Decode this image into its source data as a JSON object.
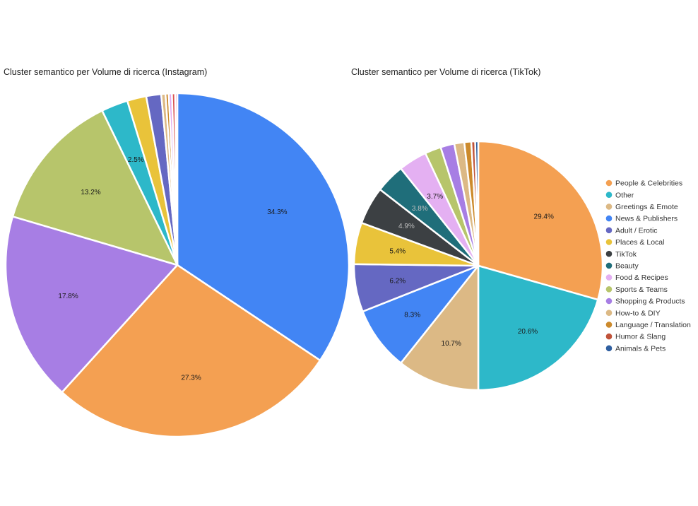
{
  "chart_data": [
    {
      "type": "pie",
      "title": "Cluster semantico per Volume di ricerca (Instagram)",
      "slices": [
        {
          "name": "News & Publishers",
          "value": 34.3,
          "label": "34.3%",
          "color": "#4285f4"
        },
        {
          "name": "People & Celebrities",
          "value": 27.3,
          "label": "27.3%",
          "color": "#f4a052"
        },
        {
          "name": "Shopping & Products",
          "value": 17.8,
          "label": "17.8%",
          "color": "#a77ee4"
        },
        {
          "name": "Sports & Teams",
          "value": 13.2,
          "label": "13.2%",
          "color": "#b7c56b"
        },
        {
          "name": "Other",
          "value": 2.5,
          "label": "2.5%",
          "color": "#2db8c9"
        },
        {
          "name": "Places & Local",
          "value": 1.8,
          "label": "",
          "color": "#e9c33a"
        },
        {
          "name": "Adult / Erotic",
          "value": 1.4,
          "label": "",
          "color": "#6568c2"
        },
        {
          "name": "How-to & DIY",
          "value": 0.4,
          "label": "",
          "color": "#dcb985"
        },
        {
          "name": "Language / Translation",
          "value": 0.3,
          "label": "",
          "color": "#cc8a2c"
        },
        {
          "name": "Food & Recipes",
          "value": 0.3,
          "label": "",
          "color": "#e4a8ee"
        },
        {
          "name": "Humor & Slang",
          "value": 0.3,
          "label": "",
          "color": "#d9534f"
        },
        {
          "name": "Beauty",
          "value": 0.2,
          "label": "",
          "color": "#ef80b6"
        }
      ]
    },
    {
      "type": "pie",
      "title": "Cluster semantico per Volume di ricerca (TikTok)",
      "legend": "right",
      "slices": [
        {
          "name": "People & Celebrities",
          "value": 29.4,
          "label": "29.4%",
          "color": "#f4a052"
        },
        {
          "name": "Other",
          "value": 20.6,
          "label": "20.6%",
          "color": "#2db8c9"
        },
        {
          "name": "Greetings & Emote",
          "value": 10.7,
          "label": "10.7%",
          "color": "#dcb985"
        },
        {
          "name": "News & Publishers",
          "value": 8.3,
          "label": "8.3%",
          "color": "#4285f4"
        },
        {
          "name": "Adult / Erotic",
          "value": 6.2,
          "label": "6.2%",
          "color": "#6568c2"
        },
        {
          "name": "Places & Local",
          "value": 5.4,
          "label": "5.4%",
          "color": "#e9c33a"
        },
        {
          "name": "TikTok",
          "value": 4.9,
          "label": "4.9%",
          "color": "#3c4043"
        },
        {
          "name": "Beauty",
          "value": 3.8,
          "label": "3.8%",
          "color": "#1f6e7a"
        },
        {
          "name": "Food & Recipes",
          "value": 3.7,
          "label": "3.7%",
          "color": "#e4b0f2"
        },
        {
          "name": "Sports & Teams",
          "value": 2.1,
          "label": "",
          "color": "#b7c56b"
        },
        {
          "name": "Shopping & Products",
          "value": 1.8,
          "label": "",
          "color": "#a77ee4"
        },
        {
          "name": "How-to & DIY",
          "value": 1.3,
          "label": "",
          "color": "#dcb985"
        },
        {
          "name": "Language / Translation",
          "value": 0.9,
          "label": "",
          "color": "#cc8a2c"
        },
        {
          "name": "Humor & Slang",
          "value": 0.5,
          "label": "",
          "color": "#c0533a"
        },
        {
          "name": "Animals & Pets",
          "value": 0.4,
          "label": "",
          "color": "#2f5fa0"
        }
      ]
    }
  ]
}
